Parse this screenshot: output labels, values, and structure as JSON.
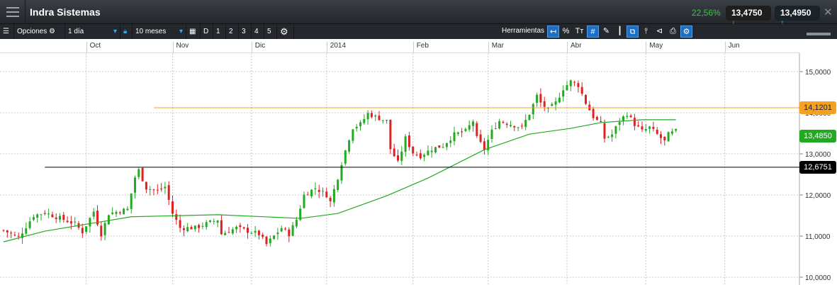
{
  "header": {
    "title": "Indra Sistemas",
    "change_pct": "22,56%",
    "sell_price": "13,4750",
    "buy_price": "13,4950",
    "close": "✕"
  },
  "toolbar": {
    "options_label": "Opciones",
    "interval": "1 día",
    "range": "10 meses",
    "periods": [
      "D",
      "1",
      "2",
      "3",
      "4",
      "5"
    ],
    "tools_label": "Herramientas"
  },
  "colors": {
    "up": "#22aa22",
    "down": "#dd2222",
    "ma": "#22aa22",
    "resistance": "#f0a020",
    "support": "#000000"
  },
  "chart_data": {
    "type": "candlestick",
    "x_months": [
      {
        "label": "Oct",
        "day": 22
      },
      {
        "label": "Nov",
        "day": 45
      },
      {
        "label": "Dic",
        "day": 66
      },
      {
        "label": "2014",
        "day": 86
      },
      {
        "label": "Feb",
        "day": 109
      },
      {
        "label": "Mar",
        "day": 129
      },
      {
        "label": "Abr",
        "day": 150
      },
      {
        "label": "May",
        "day": 171
      },
      {
        "label": "Jun",
        "day": 192
      }
    ],
    "y_ticks": [
      "15,0000",
      "14,0000",
      "13,0000",
      "12,0000",
      "11,0000",
      "10,0000"
    ],
    "y_tick_values": [
      15,
      14,
      13,
      12,
      11,
      10
    ],
    "ylim": [
      9.82,
      16.27
    ],
    "close_path": [
      [
        0,
        11.14
      ],
      [
        4,
        10.97
      ],
      [
        8,
        11.5
      ],
      [
        11,
        11.57
      ],
      [
        19,
        11.3
      ],
      [
        21,
        11.1
      ],
      [
        24,
        11.6
      ],
      [
        26,
        11.05
      ],
      [
        28,
        11.55
      ],
      [
        33,
        11.65
      ],
      [
        35,
        12.43
      ],
      [
        36,
        12.6
      ],
      [
        38,
        12.17
      ],
      [
        41,
        12.1
      ],
      [
        43,
        12.2
      ],
      [
        45,
        11.55
      ],
      [
        47,
        11.2
      ],
      [
        51,
        11.2
      ],
      [
        57,
        11.4
      ],
      [
        58,
        11.05
      ],
      [
        62,
        11.2
      ],
      [
        68,
        11.05
      ],
      [
        70,
        10.8
      ],
      [
        74,
        11.2
      ],
      [
        76,
        11.05
      ],
      [
        78,
        11.4
      ],
      [
        80,
        12.0
      ],
      [
        83,
        12.17
      ],
      [
        86,
        12.0
      ],
      [
        87,
        11.83
      ],
      [
        89,
        12.43
      ],
      [
        90,
        12.78
      ],
      [
        92,
        13.38
      ],
      [
        93,
        13.64
      ],
      [
        95,
        13.72
      ],
      [
        97,
        13.98
      ],
      [
        99,
        13.9
      ],
      [
        102,
        13.8
      ],
      [
        103,
        13.12
      ],
      [
        105,
        12.78
      ],
      [
        107,
        13.38
      ],
      [
        109,
        13.03
      ],
      [
        111,
        12.95
      ],
      [
        114,
        13.12
      ],
      [
        117,
        13.2
      ],
      [
        120,
        13.47
      ],
      [
        123,
        13.55
      ],
      [
        125,
        13.8
      ],
      [
        126,
        13.38
      ],
      [
        128,
        13.12
      ],
      [
        130,
        13.55
      ],
      [
        132,
        13.8
      ],
      [
        135,
        13.72
      ],
      [
        138,
        13.64
      ],
      [
        140,
        13.98
      ],
      [
        142,
        14.41
      ],
      [
        143,
        14.24
      ],
      [
        145,
        14.07
      ],
      [
        147,
        14.24
      ],
      [
        149,
        14.59
      ],
      [
        151,
        14.76
      ],
      [
        153,
        14.67
      ],
      [
        155,
        14.24
      ],
      [
        157,
        13.9
      ],
      [
        159,
        13.72
      ],
      [
        160,
        13.38
      ],
      [
        162,
        13.47
      ],
      [
        164,
        13.8
      ],
      [
        166,
        13.98
      ],
      [
        168,
        13.72
      ],
      [
        170,
        13.55
      ],
      [
        172,
        13.64
      ],
      [
        174,
        13.47
      ],
      [
        176,
        13.3
      ],
      [
        177,
        13.47
      ],
      [
        179,
        13.55
      ]
    ],
    "moving_average": [
      [
        0,
        10.86
      ],
      [
        11,
        11.12
      ],
      [
        34,
        11.47
      ],
      [
        57,
        11.52
      ],
      [
        79,
        11.43
      ],
      [
        89,
        11.55
      ],
      [
        102,
        11.98
      ],
      [
        113,
        12.41
      ],
      [
        128,
        13.1
      ],
      [
        140,
        13.48
      ],
      [
        151,
        13.62
      ],
      [
        159,
        13.76
      ],
      [
        170,
        13.83
      ],
      [
        179,
        13.83
      ]
    ],
    "hlines": [
      {
        "label": "14,1201",
        "value": 14.1201,
        "from_day": 40
      },
      {
        "label": "12,6751",
        "value": 12.6751,
        "from_day": 11
      }
    ],
    "last_price_label": "13,4850",
    "last_price": 13.485
  }
}
